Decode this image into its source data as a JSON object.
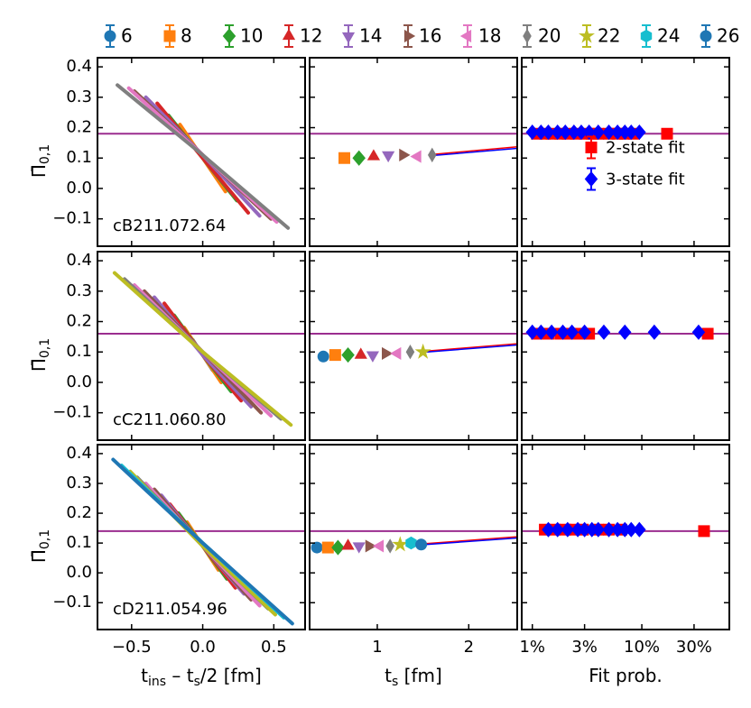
{
  "chart_data": [
    {
      "type": "legend",
      "series": [
        {
          "name": "6",
          "color": "#1f77b4",
          "marker": "o"
        },
        {
          "name": "8",
          "color": "#ff7f0e",
          "marker": "s"
        },
        {
          "name": "10",
          "color": "#2ca02c",
          "marker": "D"
        },
        {
          "name": "12",
          "color": "#d62728",
          "marker": "^"
        },
        {
          "name": "14",
          "color": "#9467bd",
          "marker": "v"
        },
        {
          "name": "16",
          "color": "#8c564b",
          "marker": ">"
        },
        {
          "name": "18",
          "color": "#e377c2",
          "marker": "<"
        },
        {
          "name": "20",
          "color": "#7f7f7f",
          "marker": "d"
        },
        {
          "name": "22",
          "color": "#bcbd22",
          "marker": "*"
        },
        {
          "name": "24",
          "color": "#17becf",
          "marker": "h"
        },
        {
          "name": "26",
          "color": "#1f77b4",
          "marker": "o"
        }
      ]
    },
    {
      "type": "line",
      "ensemble": "cB211.072.64",
      "ylabel": [
        "Π̄",
        "0,1"
      ],
      "xlim": [
        -0.74,
        0.72
      ],
      "ylim": [
        -0.19,
        0.43
      ],
      "yticks": [
        0.4,
        0.3,
        0.2,
        0.1,
        {
          "value": 0,
          "label": "0.0"
        },
        {
          "value": -0.1,
          "label": "−0.1"
        }
      ],
      "hline": 0.18,
      "hline_color": "#9b2d8f",
      "series": [
        {
          "color": "#ff7f0e",
          "x": [
            -0.16,
            0,
            0.16
          ],
          "values": [
            0.21,
            0.1,
            -0.01
          ]
        },
        {
          "color": "#2ca02c",
          "x": [
            -0.24,
            0,
            0.24
          ],
          "values": [
            0.24,
            0.1,
            -0.04
          ]
        },
        {
          "color": "#d62728",
          "x": [
            -0.32,
            0,
            0.32
          ],
          "values": [
            0.28,
            0.1,
            -0.08
          ]
        },
        {
          "color": "#9467bd",
          "x": [
            -0.4,
            0,
            0.4
          ],
          "values": [
            0.3,
            0.11,
            -0.09
          ]
        },
        {
          "color": "#8c564b",
          "x": [
            -0.48,
            0,
            0.48
          ],
          "values": [
            0.32,
            0.11,
            -0.1
          ]
        },
        {
          "color": "#e377c2",
          "x": [
            -0.52,
            0,
            0.52
          ],
          "values": [
            0.33,
            0.11,
            -0.11
          ]
        },
        {
          "color": "#7f7f7f",
          "x": [
            -0.6,
            0,
            0.6
          ],
          "values": [
            0.34,
            0.11,
            -0.13
          ]
        }
      ]
    },
    {
      "type": "scatter",
      "xlim": [
        0.26,
        2.53
      ],
      "ylim": [
        -0.19,
        0.43
      ],
      "hline": 0.18,
      "hline_color": "#9b2d8f",
      "series": [
        {
          "color": "#ff7f0e",
          "marker": "s",
          "x": [
            0.64
          ],
          "values": [
            0.1
          ]
        },
        {
          "color": "#2ca02c",
          "marker": "D",
          "x": [
            0.8
          ],
          "values": [
            0.1
          ]
        },
        {
          "color": "#d62728",
          "marker": "^",
          "x": [
            0.96
          ],
          "values": [
            0.105
          ]
        },
        {
          "color": "#9467bd",
          "marker": "v",
          "x": [
            1.12
          ],
          "values": [
            0.11
          ]
        },
        {
          "color": "#8c564b",
          "marker": ">",
          "x": [
            1.28
          ],
          "values": [
            0.11
          ]
        },
        {
          "color": "#e377c2",
          "marker": "<",
          "x": [
            1.44
          ],
          "values": [
            0.105
          ]
        },
        {
          "color": "#7f7f7f",
          "marker": "d",
          "x": [
            1.6
          ],
          "values": [
            0.11
          ]
        }
      ],
      "fits": [
        {
          "color": "#ff0000",
          "x": [
            1.6,
            2.53
          ],
          "values": [
            0.112,
            0.137
          ]
        },
        {
          "color": "#0000ff",
          "x": [
            1.6,
            2.53
          ],
          "values": [
            0.108,
            0.132
          ]
        }
      ]
    },
    {
      "type": "scatter",
      "xscale": "log",
      "xlim": [
        0.8,
        63
      ],
      "ylim": [
        -0.19,
        0.43
      ],
      "hline": 0.18,
      "hline_color": "#9b2d8f",
      "legend": "center right",
      "series": [
        {
          "name": "2-state fit",
          "color": "#ff0000",
          "marker": "s",
          "x": [
            1.1,
            1.3,
            1.5,
            1.8,
            2.1,
            2.5,
            3,
            3.5,
            4,
            5,
            6,
            7,
            8.5,
            17
          ],
          "values": [
            0.18,
            0.18,
            0.18,
            0.18,
            0.18,
            0.18,
            0.18,
            0.18,
            0.18,
            0.18,
            0.18,
            0.18,
            0.18,
            0.18
          ]
        },
        {
          "name": "3-state fit",
          "color": "#0000ff",
          "marker": "D",
          "x": [
            1,
            1.2,
            1.4,
            1.7,
            2,
            2.4,
            2.8,
            3.3,
            4,
            5,
            6,
            7,
            8,
            9.5
          ],
          "values": [
            0.185,
            0.185,
            0.185,
            0.185,
            0.185,
            0.185,
            0.185,
            0.185,
            0.185,
            0.185,
            0.185,
            0.185,
            0.185,
            0.185
          ]
        }
      ]
    },
    {
      "type": "line",
      "ensemble": "cC211.060.80",
      "ylabel": [
        "Π̄",
        "0,1"
      ],
      "xlim": [
        -0.74,
        0.72
      ],
      "ylim": [
        -0.19,
        0.43
      ],
      "yticks": [
        0.4,
        0.3,
        0.2,
        0.1,
        {
          "value": 0,
          "label": "0.0"
        },
        {
          "value": -0.1,
          "label": "−0.1"
        }
      ],
      "hline": 0.16,
      "hline_color": "#9b2d8f",
      "series": [
        {
          "color": "#1f77b4",
          "x": [
            -0.07,
            0,
            0.07
          ],
          "values": [
            0.14,
            0.09,
            0.04
          ]
        },
        {
          "color": "#ff7f0e",
          "x": [
            -0.13,
            0,
            0.13
          ],
          "values": [
            0.18,
            0.09,
            0.0
          ]
        },
        {
          "color": "#2ca02c",
          "x": [
            -0.2,
            0,
            0.2
          ],
          "values": [
            0.22,
            0.09,
            -0.03
          ]
        },
        {
          "color": "#d62728",
          "x": [
            -0.27,
            0,
            0.27
          ],
          "values": [
            0.26,
            0.09,
            -0.06
          ]
        },
        {
          "color": "#9467bd",
          "x": [
            -0.34,
            0,
            0.34
          ],
          "values": [
            0.28,
            0.09,
            -0.08
          ]
        },
        {
          "color": "#8c564b",
          "x": [
            -0.41,
            0,
            0.41
          ],
          "values": [
            0.3,
            0.1,
            -0.1
          ]
        },
        {
          "color": "#e377c2",
          "x": [
            -0.48,
            0,
            0.48
          ],
          "values": [
            0.32,
            0.1,
            -0.11
          ]
        },
        {
          "color": "#7f7f7f",
          "x": [
            -0.55,
            0,
            0.55
          ],
          "values": [
            0.34,
            0.1,
            -0.12
          ]
        },
        {
          "color": "#bcbd22",
          "x": [
            -0.62,
            0,
            0.62
          ],
          "values": [
            0.36,
            0.1,
            -0.14
          ]
        }
      ]
    },
    {
      "type": "scatter",
      "xlim": [
        0.26,
        2.53
      ],
      "ylim": [
        -0.19,
        0.43
      ],
      "hline": 0.16,
      "hline_color": "#9b2d8f",
      "series": [
        {
          "color": "#1f77b4",
          "marker": "o",
          "x": [
            0.41
          ],
          "values": [
            0.085
          ]
        },
        {
          "color": "#ff7f0e",
          "marker": "s",
          "x": [
            0.54
          ],
          "values": [
            0.09
          ]
        },
        {
          "color": "#2ca02c",
          "marker": "D",
          "x": [
            0.68
          ],
          "values": [
            0.09
          ]
        },
        {
          "color": "#d62728",
          "marker": "^",
          "x": [
            0.82
          ],
          "values": [
            0.09
          ]
        },
        {
          "color": "#9467bd",
          "marker": "v",
          "x": [
            0.95
          ],
          "values": [
            0.09
          ]
        },
        {
          "color": "#8c564b",
          "marker": ">",
          "x": [
            1.09
          ],
          "values": [
            0.095
          ]
        },
        {
          "color": "#e377c2",
          "marker": "<",
          "x": [
            1.22
          ],
          "values": [
            0.095
          ]
        },
        {
          "color": "#7f7f7f",
          "marker": "d",
          "x": [
            1.36
          ],
          "values": [
            0.1
          ]
        },
        {
          "color": "#bcbd22",
          "marker": "*",
          "x": [
            1.5
          ],
          "values": [
            0.1
          ]
        }
      ],
      "fits": [
        {
          "color": "#ff0000",
          "x": [
            1.5,
            2.53
          ],
          "values": [
            0.102,
            0.127
          ]
        },
        {
          "color": "#0000ff",
          "x": [
            1.5,
            2.53
          ],
          "values": [
            0.099,
            0.123
          ]
        }
      ]
    },
    {
      "type": "scatter",
      "xscale": "log",
      "xlim": [
        0.8,
        63
      ],
      "ylim": [
        -0.19,
        0.43
      ],
      "hline": 0.16,
      "hline_color": "#9b2d8f",
      "series": [
        {
          "color": "#ff0000",
          "marker": "s",
          "x": [
            1.1,
            1.4,
            1.8,
            2.2,
            2.8,
            3.3,
            40
          ],
          "values": [
            0.16,
            0.16,
            0.16,
            0.16,
            0.16,
            0.16,
            0.16
          ]
        },
        {
          "color": "#0000ff",
          "marker": "D",
          "x": [
            1,
            1.2,
            1.5,
            1.9,
            2.3,
            3,
            4.5,
            7,
            13,
            33
          ],
          "values": [
            0.165,
            0.165,
            0.165,
            0.165,
            0.165,
            0.165,
            0.165,
            0.165,
            0.165,
            0.165
          ]
        }
      ]
    },
    {
      "type": "line",
      "ensemble": "cD211.054.96",
      "ylabel": [
        "Π̄",
        "0,1"
      ],
      "xlabel": [
        "t",
        "ins",
        " – t",
        "s",
        "/2 [fm]"
      ],
      "xlim": [
        -0.74,
        0.72
      ],
      "ylim": [
        -0.19,
        0.43
      ],
      "xticks": [
        {
          "value": -0.5,
          "label": "−0.5"
        },
        {
          "value": 0,
          "label": "0.0"
        },
        0.5
      ],
      "yticks": [
        0.4,
        0.3,
        0.2,
        0.1,
        {
          "value": 0,
          "label": "0.0"
        },
        {
          "value": -0.1,
          "label": "−0.1"
        }
      ],
      "hline": 0.14,
      "hline_color": "#9b2d8f",
      "series": [
        {
          "color": "#1f77b4",
          "x": [
            -0.06,
            0,
            0.06
          ],
          "values": [
            0.13,
            0.09,
            0.05
          ]
        },
        {
          "color": "#ff7f0e",
          "x": [
            -0.11,
            0,
            0.11
          ],
          "values": [
            0.17,
            0.09,
            0.01
          ]
        },
        {
          "color": "#2ca02c",
          "x": [
            -0.17,
            0,
            0.17
          ],
          "values": [
            0.2,
            0.09,
            -0.02
          ]
        },
        {
          "color": "#d62728",
          "x": [
            -0.23,
            0,
            0.23
          ],
          "values": [
            0.23,
            0.09,
            -0.05
          ]
        },
        {
          "color": "#9467bd",
          "x": [
            -0.29,
            0,
            0.29
          ],
          "values": [
            0.26,
            0.09,
            -0.07
          ]
        },
        {
          "color": "#8c564b",
          "x": [
            -0.34,
            0,
            0.34
          ],
          "values": [
            0.28,
            0.09,
            -0.09
          ]
        },
        {
          "color": "#e377c2",
          "x": [
            -0.4,
            0,
            0.4
          ],
          "values": [
            0.3,
            0.09,
            -0.11
          ]
        },
        {
          "color": "#7f7f7f",
          "x": [
            -0.46,
            0,
            0.46
          ],
          "values": [
            0.32,
            0.09,
            -0.12
          ]
        },
        {
          "color": "#bcbd22",
          "x": [
            -0.51,
            0,
            0.51
          ],
          "values": [
            0.34,
            0.09,
            -0.14
          ]
        },
        {
          "color": "#17becf",
          "x": [
            -0.57,
            0,
            0.57
          ],
          "values": [
            0.36,
            0.1,
            -0.15
          ]
        },
        {
          "color": "#1f77b4",
          "x": [
            -0.63,
            0,
            0.63
          ],
          "values": [
            0.38,
            0.1,
            -0.17
          ]
        }
      ]
    },
    {
      "type": "scatter",
      "xlabel": [
        "t",
        "s",
        " [fm]"
      ],
      "xlim": [
        0.26,
        2.53
      ],
      "ylim": [
        -0.19,
        0.43
      ],
      "xticks": [
        1,
        2
      ],
      "hline": 0.14,
      "hline_color": "#9b2d8f",
      "series": [
        {
          "color": "#1f77b4",
          "marker": "o",
          "x": [
            0.34
          ],
          "values": [
            0.085
          ]
        },
        {
          "color": "#ff7f0e",
          "marker": "s",
          "x": [
            0.46
          ],
          "values": [
            0.085
          ]
        },
        {
          "color": "#2ca02c",
          "marker": "D",
          "x": [
            0.57
          ],
          "values": [
            0.085
          ]
        },
        {
          "color": "#d62728",
          "marker": "^",
          "x": [
            0.68
          ],
          "values": [
            0.09
          ]
        },
        {
          "color": "#9467bd",
          "marker": "v",
          "x": [
            0.8
          ],
          "values": [
            0.09
          ]
        },
        {
          "color": "#8c564b",
          "marker": ">",
          "x": [
            0.91
          ],
          "values": [
            0.09
          ]
        },
        {
          "color": "#e377c2",
          "marker": "<",
          "x": [
            1.03
          ],
          "values": [
            0.09
          ]
        },
        {
          "color": "#7f7f7f",
          "marker": "d",
          "x": [
            1.14
          ],
          "values": [
            0.09
          ]
        },
        {
          "color": "#bcbd22",
          "marker": "*",
          "x": [
            1.25
          ],
          "values": [
            0.095
          ]
        },
        {
          "color": "#17becf",
          "marker": "h",
          "x": [
            1.37
          ],
          "values": [
            0.1
          ]
        },
        {
          "color": "#1f77b4",
          "marker": "o",
          "x": [
            1.48
          ],
          "values": [
            0.095
          ]
        }
      ],
      "fits": [
        {
          "color": "#ff0000",
          "x": [
            1.48,
            2.53
          ],
          "values": [
            0.097,
            0.121
          ]
        },
        {
          "color": "#0000ff",
          "x": [
            1.48,
            2.53
          ],
          "values": [
            0.094,
            0.117
          ]
        }
      ]
    },
    {
      "type": "scatter",
      "xscale": "log",
      "xlabel": [
        "Fit prob."
      ],
      "xlim": [
        0.8,
        63
      ],
      "ylim": [
        -0.19,
        0.43
      ],
      "hline": 0.14,
      "hline_color": "#9b2d8f",
      "xticks": [
        {
          "value": 1,
          "label": "1%"
        },
        {
          "value": 3,
          "label": "3%"
        },
        {
          "value": 10,
          "label": "10%"
        },
        {
          "value": 30,
          "label": "30%"
        }
      ],
      "series": [
        {
          "color": "#ff0000",
          "marker": "s",
          "x": [
            1.3,
            1.6,
            2,
            2.4,
            2.9,
            4,
            5,
            6.5,
            37
          ],
          "values": [
            0.145,
            0.145,
            0.145,
            0.145,
            0.145,
            0.145,
            0.145,
            0.145,
            0.14
          ]
        },
        {
          "color": "#0000ff",
          "marker": "D",
          "x": [
            1.4,
            1.7,
            2.1,
            2.6,
            3,
            3.5,
            4,
            5,
            6,
            7,
            8,
            9.5
          ],
          "values": [
            0.145,
            0.145,
            0.145,
            0.145,
            0.145,
            0.145,
            0.145,
            0.145,
            0.145,
            0.145,
            0.145,
            0.145
          ]
        }
      ]
    }
  ]
}
